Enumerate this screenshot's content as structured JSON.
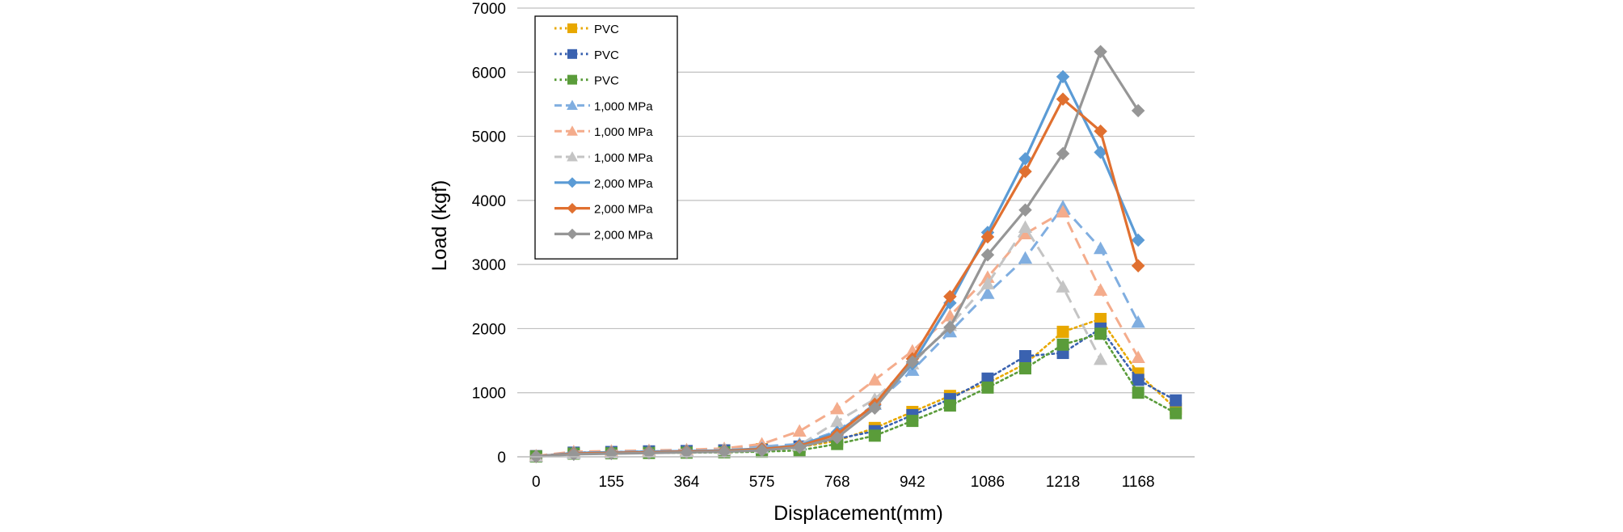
{
  "chart_data": {
    "type": "line",
    "title": "",
    "xlabel": "Displacement(mm)",
    "ylabel": "Load (kgf)",
    "ylim": [
      0,
      7000
    ],
    "yticks": [
      0,
      1000,
      2000,
      3000,
      4000,
      5000,
      6000,
      7000
    ],
    "xtick_labels": [
      "0",
      "155",
      "364",
      "575",
      "768",
      "942",
      "1086",
      "1218",
      "1168"
    ],
    "grid": true,
    "legend_position": "top-left",
    "point_count": 18,
    "series": [
      {
        "name": "PVC",
        "color": "#E8A800",
        "marker": "square",
        "line": "dotted",
        "values": [
          10,
          60,
          70,
          75,
          80,
          100,
          120,
          150,
          250,
          450,
          700,
          950,
          1150,
          1450,
          1950,
          2150,
          1300,
          750
        ]
      },
      {
        "name": "PVC",
        "color": "#3A62B0",
        "marker": "square",
        "line": "dotted",
        "values": [
          10,
          65,
          75,
          85,
          90,
          100,
          110,
          160,
          280,
          400,
          650,
          900,
          1220,
          1570,
          1620,
          2000,
          1200,
          880
        ]
      },
      {
        "name": "PVC",
        "color": "#5A9C3A",
        "marker": "square",
        "line": "dotted",
        "values": [
          5,
          50,
          55,
          60,
          65,
          70,
          80,
          100,
          200,
          330,
          560,
          800,
          1080,
          1380,
          1750,
          1920,
          1000,
          680
        ]
      },
      {
        "name": "1,000 MPa",
        "color": "#80AEE0",
        "marker": "triangle",
        "line": "dashed",
        "values": [
          10,
          60,
          70,
          90,
          100,
          120,
          160,
          200,
          400,
          820,
          1350,
          1950,
          2550,
          3100,
          3900,
          3250,
          2100,
          null
        ]
      },
      {
        "name": "1,000 MPa",
        "color": "#F4AC8C",
        "marker": "triangle",
        "line": "dashed",
        "values": [
          15,
          80,
          90,
          100,
          110,
          130,
          200,
          400,
          750,
          1200,
          1650,
          2200,
          2800,
          3480,
          3820,
          2600,
          1550,
          null
        ]
      },
      {
        "name": "1,000 MPa",
        "color": "#C4C4C4",
        "marker": "triangle",
        "line": "dashed",
        "values": [
          10,
          50,
          60,
          80,
          90,
          110,
          140,
          180,
          550,
          900,
          1450,
          2050,
          2700,
          3580,
          2650,
          1520,
          null,
          null
        ]
      },
      {
        "name": "2,000 MPa",
        "color": "#5B9BD5",
        "marker": "diamond",
        "line": "solid",
        "values": [
          5,
          60,
          70,
          80,
          90,
          100,
          130,
          180,
          380,
          800,
          1450,
          2400,
          3500,
          4650,
          5930,
          4750,
          3380,
          null
        ]
      },
      {
        "name": "2,000 MPa",
        "color": "#E07030",
        "marker": "diamond",
        "line": "solid",
        "values": [
          5,
          50,
          60,
          70,
          80,
          90,
          120,
          170,
          350,
          820,
          1530,
          2500,
          3430,
          4450,
          5580,
          5080,
          2980,
          null
        ]
      },
      {
        "name": "2,000 MPa",
        "color": "#969696",
        "marker": "diamond",
        "line": "solid",
        "values": [
          5,
          40,
          50,
          60,
          70,
          80,
          100,
          150,
          300,
          760,
          1480,
          2020,
          3150,
          3850,
          4730,
          6320,
          5400,
          null
        ]
      }
    ]
  }
}
